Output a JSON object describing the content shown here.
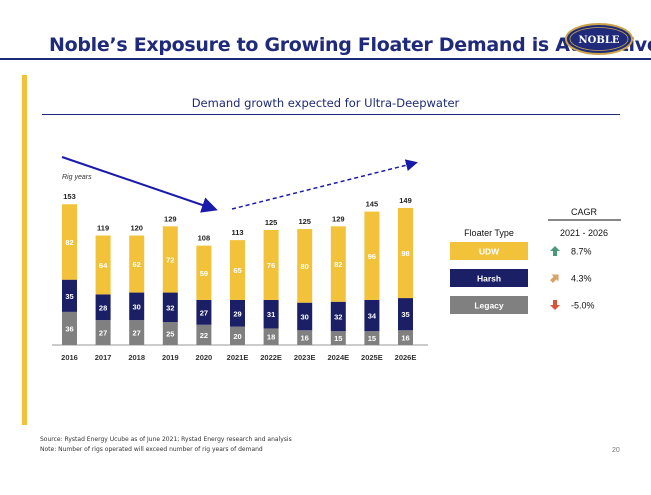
{
  "title": "Noble’s Exposure to Growing Floater Demand is Attractive",
  "logo_text": "NOBLE",
  "subtitle": "Demand growth expected for Ultra-Deepwater",
  "footer": {
    "source": "Source: Rystad Energy Ucube as of June 2021; Rystad Energy research and analysis",
    "note": "Note: Number of rigs operated will exceed number of rig years of demand",
    "page": "20"
  },
  "colors": {
    "title": "#1F2A7A",
    "accent_bar": "#F2C33A",
    "udw": "#F2C33A",
    "harsh": "#1B1F66",
    "legacy": "#808080",
    "arrow": "#1A1AAA",
    "up_green": "#4A9A7A",
    "up_tan": "#D9A268",
    "down_red": "#D9533A"
  },
  "chart_data": {
    "type": "bar",
    "stacked": true,
    "ylabel": "Rig years",
    "categories": [
      "2016",
      "2017",
      "2018",
      "2019",
      "2020",
      "2021E",
      "2022E",
      "2023E",
      "2024E",
      "2025E",
      "2026E"
    ],
    "series": [
      {
        "name": "Legacy",
        "values": [
          36,
          27,
          27,
          25,
          22,
          20,
          18,
          16,
          15,
          15,
          16
        ]
      },
      {
        "name": "Harsh",
        "values": [
          35,
          28,
          30,
          32,
          27,
          29,
          31,
          30,
          32,
          34,
          35
        ]
      },
      {
        "name": "UDW",
        "values": [
          82,
          64,
          62,
          72,
          59,
          65,
          76,
          80,
          82,
          96,
          98
        ]
      }
    ],
    "totals": [
      153,
      119,
      120,
      129,
      108,
      113,
      125,
      125,
      129,
      145,
      149
    ],
    "legend_title": "Floater Type",
    "cagr": {
      "header": "CAGR",
      "period": "2021 - 2026",
      "rows": [
        {
          "series": "UDW",
          "value": "8.7%",
          "direction": "up",
          "icon": "arrow-up-icon"
        },
        {
          "series": "Harsh",
          "value": "4.3%",
          "direction": "up-right",
          "icon": "arrow-up-right-icon"
        },
        {
          "series": "Legacy",
          "value": "-5.0%",
          "direction": "down",
          "icon": "arrow-down-icon"
        }
      ]
    }
  }
}
